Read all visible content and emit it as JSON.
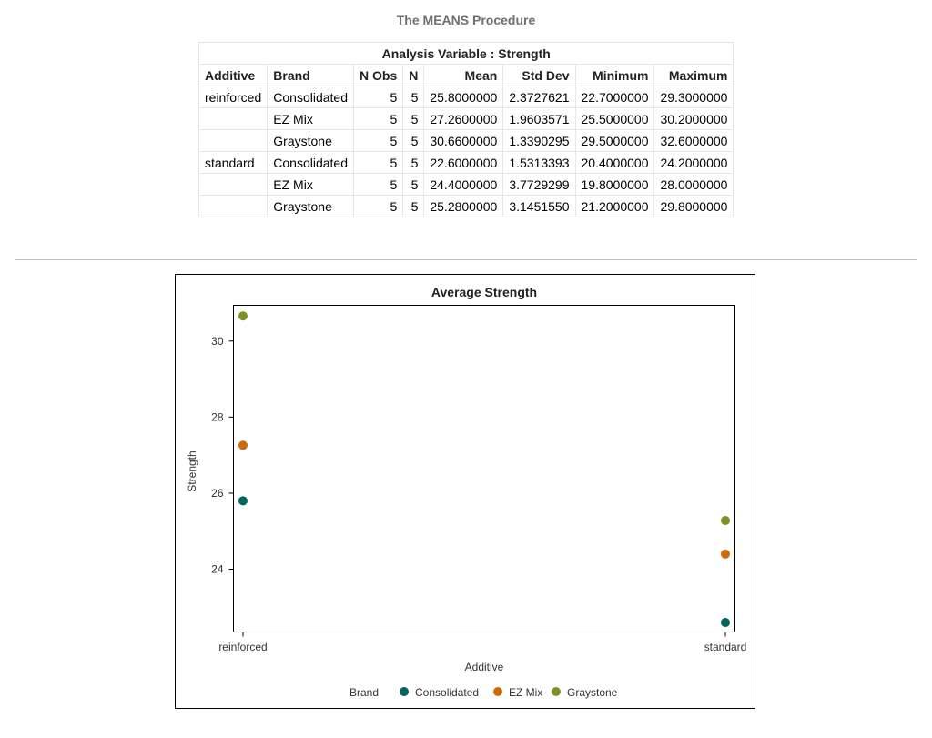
{
  "procedure_title": "The MEANS Procedure",
  "table": {
    "caption": "Analysis Variable : Strength",
    "headers": [
      "Additive",
      "Brand",
      "N Obs",
      "N",
      "Mean",
      "Std Dev",
      "Minimum",
      "Maximum"
    ],
    "rows": [
      [
        "reinforced",
        "Consolidated",
        "5",
        "5",
        "25.8000000",
        "2.3727621",
        "22.7000000",
        "29.3000000"
      ],
      [
        "",
        "EZ Mix",
        "5",
        "5",
        "27.2600000",
        "1.9603571",
        "25.5000000",
        "30.2000000"
      ],
      [
        "",
        "Graystone",
        "5",
        "5",
        "30.6600000",
        "1.3390295",
        "29.5000000",
        "32.6000000"
      ],
      [
        "standard",
        "Consolidated",
        "5",
        "5",
        "22.6000000",
        "1.5313393",
        "20.4000000",
        "24.2000000"
      ],
      [
        "",
        "EZ Mix",
        "5",
        "5",
        "24.4000000",
        "3.7729299",
        "19.8000000",
        "28.0000000"
      ],
      [
        "",
        "Graystone",
        "5",
        "5",
        "25.2800000",
        "3.1451550",
        "21.2000000",
        "29.8000000"
      ]
    ]
  },
  "chart_data": {
    "type": "scatter",
    "title": "Average Strength",
    "xlabel": "Additive",
    "ylabel": "Strength",
    "categories": [
      "reinforced",
      "standard"
    ],
    "ylim": [
      22.35,
      30.94
    ],
    "yticks": [
      24,
      26,
      28,
      30
    ],
    "legend_title": "Brand",
    "legend_position": "bottom",
    "series": [
      {
        "name": "Consolidated",
        "color": "#01665e",
        "values": [
          25.8,
          22.6
        ]
      },
      {
        "name": "EZ Mix",
        "color": "#cc6b08",
        "values": [
          27.26,
          24.4
        ]
      },
      {
        "name": "Graystone",
        "color": "#7a9324",
        "values": [
          30.66,
          25.28
        ]
      }
    ]
  }
}
